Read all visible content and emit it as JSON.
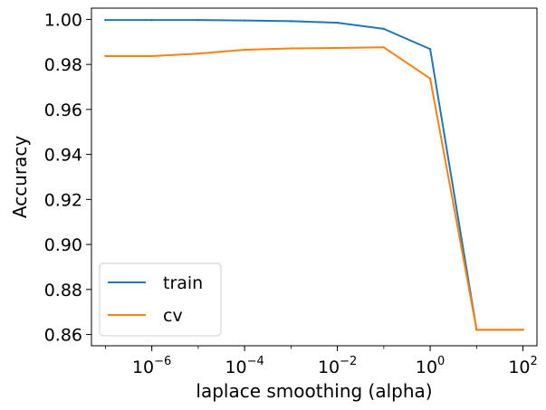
{
  "chart_data": {
    "type": "line",
    "xscale": "log",
    "xlabel": "laplace smoothing (alpha)",
    "ylabel": "Accuracy",
    "xlim": [
      5e-08,
      200
    ],
    "ylim": [
      0.855,
      1.005
    ],
    "grid": false,
    "legend": "lower-left",
    "x": [
      1e-07,
      1e-06,
      1e-05,
      0.0001,
      0.001,
      0.01,
      0.1,
      1,
      10,
      100
    ],
    "series": [
      {
        "name": "train",
        "color": "#1f77b4",
        "values": [
          0.9997,
          0.9997,
          0.9997,
          0.9995,
          0.9992,
          0.9985,
          0.9958,
          0.9868,
          0.8621,
          0.8621
        ]
      },
      {
        "name": "cv",
        "color": "#ff7f0e",
        "values": [
          0.9837,
          0.9837,
          0.9848,
          0.9865,
          0.9871,
          0.9873,
          0.9876,
          0.9737,
          0.8621,
          0.8621
        ]
      }
    ],
    "x_ticks": [
      {
        "base": "10",
        "exp": "−6",
        "value": 1e-06
      },
      {
        "base": "10",
        "exp": "−4",
        "value": 0.0001
      },
      {
        "base": "10",
        "exp": "−2",
        "value": 0.01
      },
      {
        "base": "10",
        "exp": "0",
        "value": 1
      },
      {
        "base": "10",
        "exp": "2",
        "value": 100
      }
    ],
    "y_ticks": [
      {
        "label": "0.86",
        "value": 0.86
      },
      {
        "label": "0.88",
        "value": 0.88
      },
      {
        "label": "0.90",
        "value": 0.9
      },
      {
        "label": "0.92",
        "value": 0.92
      },
      {
        "label": "0.94",
        "value": 0.94
      },
      {
        "label": "0.96",
        "value": 0.96
      },
      {
        "label": "0.98",
        "value": 0.98
      },
      {
        "label": "1.00",
        "value": 1.0
      }
    ]
  }
}
